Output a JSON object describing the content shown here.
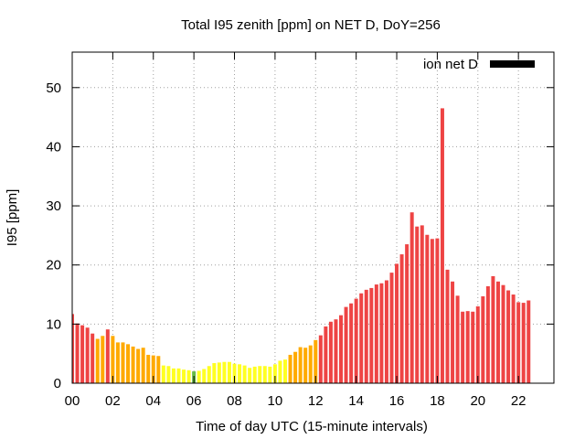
{
  "chart_data": {
    "type": "bar",
    "title": "Total I95 zenith [ppm] on NET D, DoY=256",
    "xlabel": "Time of day UTC (15-minute intervals)",
    "ylabel": "I95 [ppm]",
    "ylim": [
      0,
      56
    ],
    "xlim": [
      0,
      23.75
    ],
    "yticks": [
      0,
      10,
      20,
      30,
      40,
      50
    ],
    "xticks": [
      "00",
      "02",
      "04",
      "06",
      "08",
      "10",
      "12",
      "14",
      "16",
      "18",
      "20",
      "22"
    ],
    "grid": true,
    "legend": {
      "label": "ion net D",
      "color": "#000000",
      "placement": "top-right"
    },
    "color_scale": [
      {
        "max": 2,
        "color": "#66bb44"
      },
      {
        "max": 4,
        "color": "#ffff22"
      },
      {
        "max": 8,
        "color": "#ffaa00"
      },
      {
        "max": 1000,
        "color": "#ee4444"
      }
    ],
    "interval_hours": 0.25,
    "values": [
      11.7,
      10.1,
      9.8,
      9.4,
      8.4,
      7.5,
      8.0,
      9.1,
      8.0,
      6.9,
      6.9,
      6.6,
      6.2,
      5.8,
      6.0,
      4.8,
      4.7,
      4.6,
      3.0,
      2.9,
      2.5,
      2.5,
      2.3,
      2.2,
      2.0,
      2.1,
      2.4,
      2.9,
      3.4,
      3.5,
      3.6,
      3.6,
      3.3,
      3.2,
      3.0,
      2.6,
      2.8,
      2.9,
      2.9,
      2.8,
      3.2,
      3.8,
      4.0,
      4.8,
      5.3,
      6.1,
      6.0,
      6.4,
      7.3,
      8.1,
      9.6,
      10.4,
      10.8,
      11.5,
      12.9,
      13.5,
      14.3,
      15.2,
      15.8,
      16.1,
      16.7,
      16.9,
      17.4,
      18.7,
      20.2,
      21.8,
      23.5,
      28.9,
      26.5,
      26.7,
      25.1,
      24.4,
      24.5,
      46.5,
      19.2,
      17.2,
      14.8,
      12.1,
      12.2,
      12.1,
      13.0,
      14.7,
      16.4,
      18.1,
      17.2,
      16.6,
      15.7,
      15.0,
      13.7,
      13.6,
      14.0
    ]
  }
}
